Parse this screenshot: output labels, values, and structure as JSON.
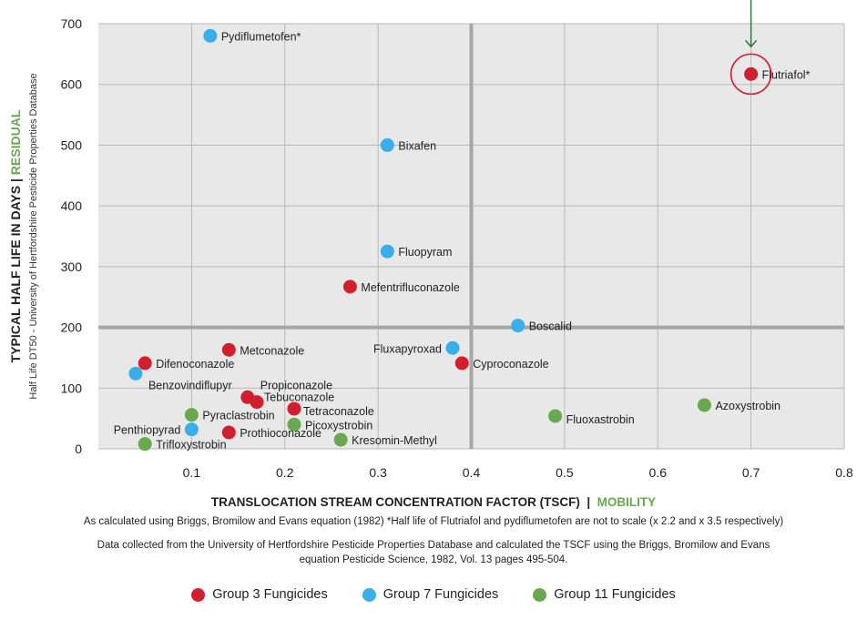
{
  "chart_data": {
    "type": "scatter",
    "xlabel": "TRANSLOCATION STREAM CONCENTRATION FACTOR (TSCF)",
    "xlabel_suffix": "MOBILITY",
    "ylabel": "TYPICAL HALF LIFE IN DAYS",
    "ylabel_suffix": "RESIDUAL",
    "ylabel_sub": "Half Life DT50 - University of Hertfordshire Pesticide Properties Database",
    "xlim": [
      0,
      0.8
    ],
    "ylim": [
      0,
      700
    ],
    "x_ticks": [
      "0.1",
      "0.2",
      "0.3",
      "0.4",
      "0.5",
      "0.6",
      "0.7",
      "0.8"
    ],
    "y_ticks": [
      "0",
      "100",
      "200",
      "300",
      "400",
      "500",
      "600",
      "700"
    ],
    "grid": true,
    "quadrant_lines": {
      "x": 0.4,
      "y": 200
    },
    "highlight": "Flutriafol*",
    "legend_position": "bottom",
    "series": [
      {
        "name": "Group 3 Fungicides",
        "color": "#d0202e",
        "points": [
          {
            "label": "Flutriafol*",
            "x": 0.7,
            "y": 617
          },
          {
            "label": "Mefentrifluconazole",
            "x": 0.27,
            "y": 267
          },
          {
            "label": "Metconazole",
            "x": 0.14,
            "y": 163
          },
          {
            "label": "Difenoconazole",
            "x": 0.05,
            "y": 141
          },
          {
            "label": "Cyproconazole",
            "x": 0.39,
            "y": 141
          },
          {
            "label": "Propiconazole",
            "x": 0.16,
            "y": 85
          },
          {
            "label": "Tebuconazole",
            "x": 0.17,
            "y": 77
          },
          {
            "label": "Tetraconazole",
            "x": 0.21,
            "y": 66
          },
          {
            "label": "Prothioconazole",
            "x": 0.14,
            "y": 27
          }
        ]
      },
      {
        "name": "Group 7 Fungicides",
        "color": "#3aaee8",
        "points": [
          {
            "label": "Pydiflumetofen*",
            "x": 0.12,
            "y": 680
          },
          {
            "label": "Bixafen",
            "x": 0.31,
            "y": 500
          },
          {
            "label": "Fluopyram",
            "x": 0.31,
            "y": 325
          },
          {
            "label": "Boscalid",
            "x": 0.45,
            "y": 203
          },
          {
            "label": "Fluxapyroxad",
            "x": 0.38,
            "y": 166
          },
          {
            "label": "Benzovindiflupyr",
            "x": 0.04,
            "y": 124
          },
          {
            "label": "Penthiopyrad",
            "x": 0.1,
            "y": 32
          }
        ]
      },
      {
        "name": "Group 11 Fungicides",
        "color": "#6aa84f",
        "points": [
          {
            "label": "Azoxystrobin",
            "x": 0.65,
            "y": 72
          },
          {
            "label": "Fluoxastrobin",
            "x": 0.49,
            "y": 54
          },
          {
            "label": "Pyraclastrobin",
            "x": 0.1,
            "y": 56
          },
          {
            "label": "Picoxystrobin",
            "x": 0.21,
            "y": 40
          },
          {
            "label": "Kresomin-Methyl",
            "x": 0.26,
            "y": 15
          },
          {
            "label": "Trifloxystrobin",
            "x": 0.05,
            "y": 8
          }
        ]
      }
    ]
  },
  "notes": {
    "line1": "As calculated using Briggs, Bromilow and Evans equation (1982) *Half life of Flutriafol and pydiflumetofen are not to scale (x 2.2 and x 3.5 respectively)",
    "line2a": "Data collected from the University of Hertfordshire Pesticide Properties Database and calculated the TSCF using the Briggs, Bromilow and Evans",
    "line2b": "equation Pesticide Science, 1982, Vol. 13 pages 495-504."
  },
  "legend": [
    {
      "label": "Group 3 Fungicides",
      "color": "#d0202e"
    },
    {
      "label": "Group 7 Fungicides",
      "color": "#3aaee8"
    },
    {
      "label": "Group 11 Fungicides",
      "color": "#6aa84f"
    }
  ]
}
